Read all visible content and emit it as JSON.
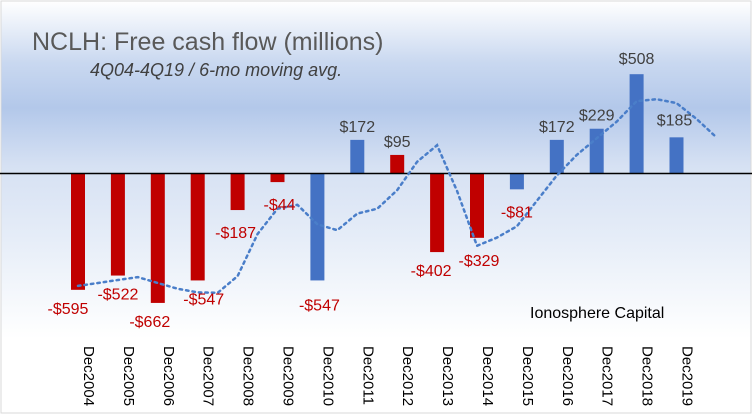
{
  "chart_data": {
    "type": "bar",
    "title": "NCLH: Free cash flow (millions)",
    "subtitle": "4Q04-4Q19 / 6-mo moving avg.",
    "watermark": "Ionosphere Capital",
    "categories": [
      "Dec2004",
      "Dec2005",
      "Dec2006",
      "Dec2007",
      "Dec2008",
      "Dec2009",
      "Dec2010",
      "Dec2011",
      "Dec2012",
      "Dec2013",
      "Dec2014",
      "Dec2015",
      "Dec2016",
      "Dec2017",
      "Dec2018",
      "Dec2019"
    ],
    "values": [
      -595,
      -522,
      -662,
      -547,
      -187,
      -44,
      -547,
      172,
      95,
      -402,
      -329,
      -81,
      172,
      229,
      508,
      185
    ],
    "labels": [
      "-$595",
      "-$522",
      "-$662",
      "-$547",
      "-$187",
      "-$44",
      "-$547",
      "$172",
      "$95",
      "-$402",
      "-$329",
      "-$81",
      "$172",
      "$229",
      "$508",
      "$185"
    ],
    "bar_colors": [
      "red",
      "red",
      "red",
      "red",
      "red",
      "red",
      "blue",
      "blue",
      "red",
      "red",
      "red",
      "blue",
      "blue",
      "blue",
      "blue",
      "blue"
    ],
    "moving_avg": {
      "name": "6-mo moving avg.",
      "x": [
        0,
        0.5,
        1,
        1.5,
        2,
        2.5,
        3,
        3.5,
        4,
        4.5,
        5,
        5.5,
        6,
        6.5,
        7,
        7.5,
        8,
        8.5,
        9,
        9.5,
        10,
        10.5,
        11,
        11.5,
        12,
        12.5,
        13,
        13.5,
        14,
        14.5,
        15,
        15.5,
        16
      ],
      "values": [
        -575,
        -560,
        -545,
        -530,
        -560,
        -590,
        -608,
        -610,
        -525,
        -310,
        -180,
        -160,
        -260,
        -290,
        -205,
        -180,
        -85,
        60,
        145,
        -90,
        -370,
        -328,
        -270,
        -140,
        -10,
        95,
        180,
        265,
        370,
        380,
        360,
        280,
        185
      ]
    },
    "ylim": [
      -800,
      700
    ],
    "colors": {
      "red": "#c00000",
      "blue": "#4472c4",
      "dotted": "#4a7ec9",
      "title": "#595959",
      "red_label": "#c00000",
      "blue_label": "#404040",
      "axis": "#000000"
    }
  }
}
